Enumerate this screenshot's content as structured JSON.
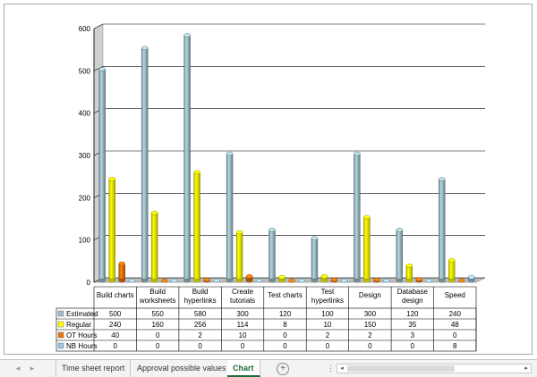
{
  "chart_data": {
    "type": "bar",
    "title": "",
    "xlabel": "",
    "ylabel": "",
    "ylim": [
      0,
      600
    ],
    "yticks": [
      0,
      100,
      200,
      300,
      400,
      500,
      600
    ],
    "grid": true,
    "legend": "data-table",
    "categories": [
      "Build charts",
      "Build worksheets",
      "Build hyperlinks",
      "Create tutorials",
      "Test charts",
      "Test hyperlinks",
      "Design",
      "Database design",
      "Speed"
    ],
    "category_lines": [
      [
        "Build charts"
      ],
      [
        "Build",
        "worksheets"
      ],
      [
        "Build",
        "hyperlinks"
      ],
      [
        "Create",
        "tutorials"
      ],
      [
        "Test charts"
      ],
      [
        "Test",
        "hyperlinks"
      ],
      [
        "Design"
      ],
      [
        "Database",
        "design"
      ],
      [
        "Speed"
      ]
    ],
    "series": [
      {
        "name": "Estimated",
        "color": "#9fbec6",
        "values": [
          500,
          550,
          580,
          300,
          120,
          100,
          300,
          120,
          240
        ]
      },
      {
        "name": "Regular",
        "color": "#ffff00",
        "values": [
          240,
          160,
          256,
          114,
          8,
          10,
          150,
          35,
          48
        ]
      },
      {
        "name": "OT Hours",
        "color": "#e8740c",
        "values": [
          40,
          0,
          2,
          10,
          0,
          2,
          2,
          3,
          0
        ]
      },
      {
        "name": "NB Hours",
        "color": "#9dc3e6",
        "values": [
          0,
          0,
          0,
          0,
          0,
          0,
          0,
          0,
          8
        ]
      }
    ]
  },
  "tabs": {
    "items": [
      {
        "label": "Time sheet report",
        "active": false
      },
      {
        "label": "Approval possible values",
        "active": false
      },
      {
        "label": "Chart",
        "active": true
      }
    ],
    "prev_glyph": "◂",
    "next_glyph": "▸",
    "add_glyph": "+",
    "more_glyph": "⋮"
  }
}
